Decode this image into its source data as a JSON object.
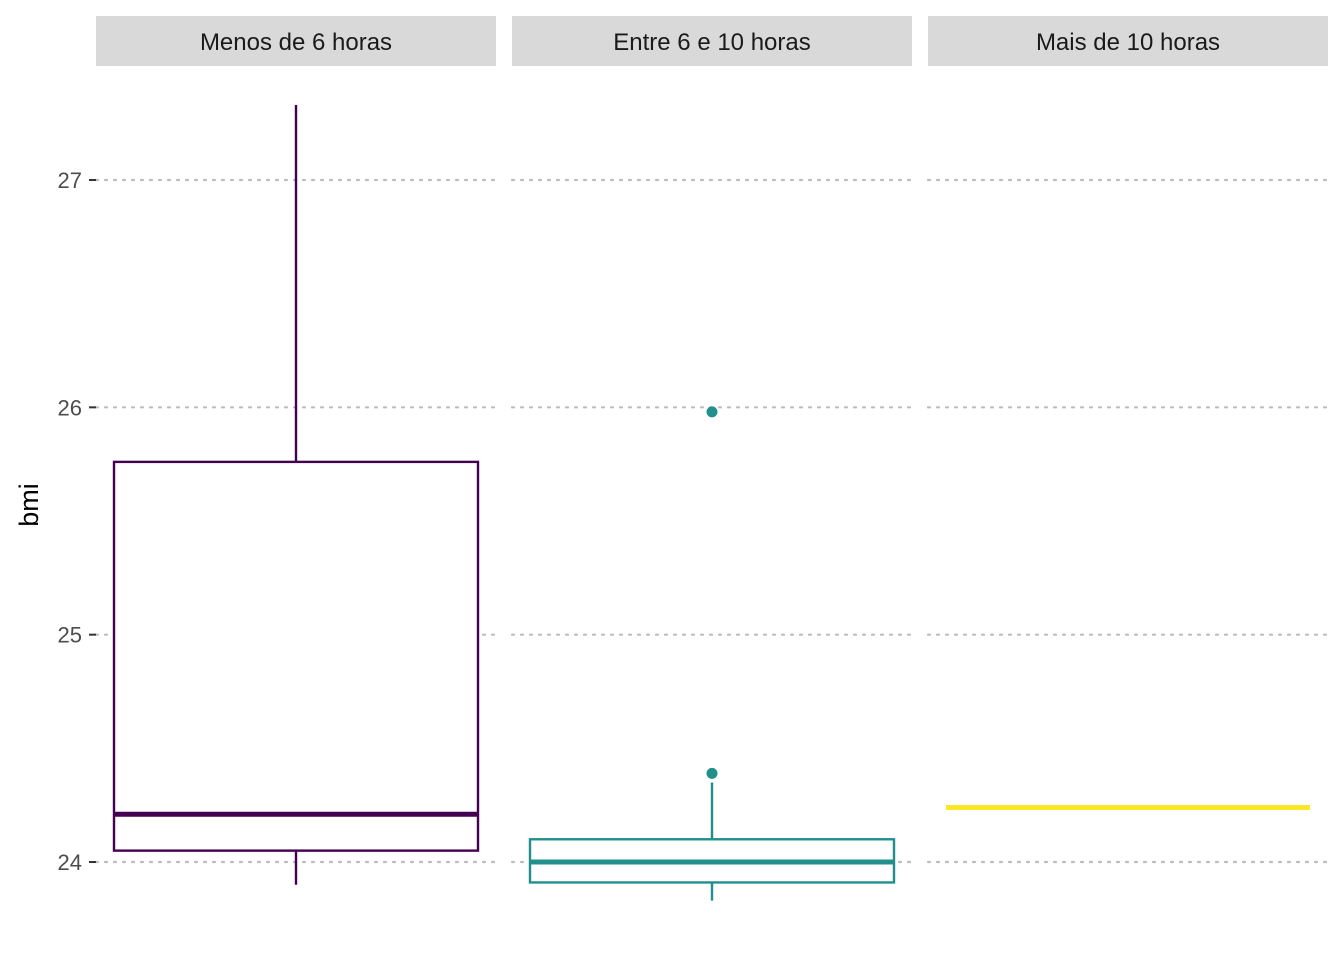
{
  "chart_data": {
    "type": "boxplot",
    "ylabel": "bmi",
    "xlabel": "",
    "ylim": [
      23.8,
      27.35
    ],
    "yticks": [
      "24",
      "25",
      "26",
      "27"
    ],
    "grid": "horizontal dotted major gridlines",
    "legend": "none",
    "panels": [
      {
        "label": "Menos de 6 horas",
        "color": "#440154",
        "whisker_low": 23.9,
        "q1": 24.05,
        "median": 24.21,
        "q3": 25.76,
        "whisker_high": 27.33,
        "outliers": []
      },
      {
        "label": "Entre 6 e 10 horas",
        "color": "#21908C",
        "whisker_low": 23.83,
        "q1": 23.91,
        "median": 24.0,
        "q3": 24.1,
        "whisker_high": 24.35,
        "outliers": [
          24.39,
          25.98
        ]
      },
      {
        "label": "Mais de 10 horas",
        "color": "#FDE725",
        "whisker_low": 24.24,
        "q1": 24.24,
        "median": 24.24,
        "q3": 24.24,
        "whisker_high": 24.24,
        "outliers": []
      }
    ]
  }
}
